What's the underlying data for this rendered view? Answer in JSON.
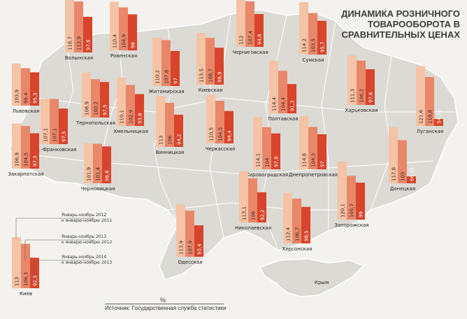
{
  "chart_title": "ДИНАМИКА РОЗНИЧНОГО ТОВАРООБОРОТА В СРАВНИТЕЛЬНЫХ ЦЕНАХ",
  "unit_label": "%",
  "source": "Источник: Государственная служба статистики",
  "colors": {
    "background": "#f4f2ee",
    "map_fill": "#dcdad5",
    "map_border": "#ffffff",
    "series": [
      "#f5c3a6",
      "#e8876a",
      "#d8442c"
    ]
  },
  "chart_data": {
    "type": "bar",
    "title": "ДИНАМИКА РОЗНИЧНОГО ТОВАРООБОРОТА В СРАВНИТЕЛЬНЫХ ЦЕНАХ",
    "unit": "%",
    "series": [
      {
        "name": "Январь-ноябрь 2012 к январю-ноябрю 2011"
      },
      {
        "name": "Январь-ноябрь 2013 к январю-ноябрю 2012"
      },
      {
        "name": "Январь-ноябрь 2014 к январю-ноябрю 2013"
      }
    ],
    "regions": [
      {
        "name": "Волынская",
        "values": [
          116.7,
          112.9,
          97.6
        ]
      },
      {
        "name": "Ровенская",
        "values": [
          110.4,
          104.9,
          98
        ]
      },
      {
        "name": "Житомирская",
        "values": [
          110.2,
          107.8,
          97
        ]
      },
      {
        "name": "Киевская",
        "values": [
          113.5,
          108.7,
          98.9
        ]
      },
      {
        "name": "Черниговская",
        "values": [
          112,
          107.4,
          94.8
        ]
      },
      {
        "name": "Сумская",
        "values": [
          114.2,
          103.5,
          95.7
        ]
      },
      {
        "name": "Львовская",
        "values": [
          103.9,
          99.4,
          95.3
        ]
      },
      {
        "name": "Тернопольская",
        "values": [
          106.9,
          100.2,
          97.5
        ]
      },
      {
        "name": "Хмельницкая",
        "values": [
          110.1,
          102.9,
          93.8
        ]
      },
      {
        "name": "Полтавская",
        "values": [
          114.4,
          104.4,
          91.3
        ]
      },
      {
        "name": "Харьковская",
        "values": [
          111.3,
          106.2,
          97.6
        ]
      },
      {
        "name": "Ив.-Франковская",
        "values": [
          107.1,
          107.1,
          97.5
        ]
      },
      {
        "name": "Винницкая",
        "values": [
          113,
          106,
          94.2
        ]
      },
      {
        "name": "Черкасская",
        "values": [
          110.5,
          104.5,
          94.4
        ]
      },
      {
        "name": "Кировоградская",
        "values": [
          114.1,
          104,
          97.8
        ]
      },
      {
        "name": "Днепропетровская",
        "values": [
          114.8,
          104.3,
          97
        ]
      },
      {
        "name": "Луганская",
        "values": [
          121.6,
          110.8,
          54.72
        ]
      },
      {
        "name": "Закарпатская",
        "values": [
          106.9,
          104.5,
          97.3
        ]
      },
      {
        "name": "Черновицкая",
        "values": [
          101.9,
          101.4,
          98.8
        ]
      },
      {
        "name": "Донецкая",
        "values": [
          117.8,
          105,
          66.32
        ]
      },
      {
        "name": "Николаевская",
        "values": [
          113.1,
          106,
          92.2
        ]
      },
      {
        "name": "Запорожская",
        "values": [
          120.1,
          105.7,
          99
        ]
      },
      {
        "name": "Одесская",
        "values": [
          113.9,
          107.9,
          93.4
        ]
      },
      {
        "name": "Херсонская",
        "values": [
          112.4,
          106.7,
          98.5
        ]
      },
      {
        "name": "Киев",
        "values": [
          113,
          106.3,
          92.5
        ]
      }
    ],
    "map_labels": [
      "Крым"
    ]
  }
}
